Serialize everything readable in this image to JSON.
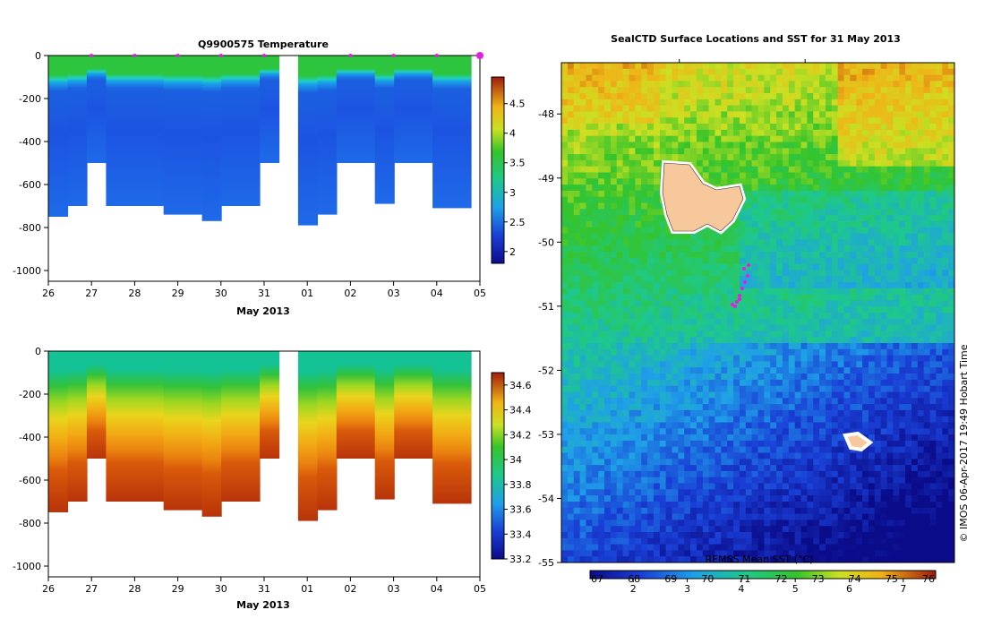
{
  "chart_data": [
    {
      "type": "heatmap",
      "title": "Q9900575  Temperature",
      "xlabel": "May 2013",
      "ylabel": "",
      "x_ticks": [
        "26",
        "27",
        "28",
        "29",
        "30",
        "31",
        "01",
        "02",
        "03",
        "04",
        "05"
      ],
      "y_ticks": [
        "0",
        "-200",
        "-400",
        "-600",
        "-800",
        "-1000"
      ],
      "ylim": [
        -1050,
        0
      ],
      "colorbar": {
        "ticks": [
          "2",
          "2.5",
          "3",
          "3.5",
          "4",
          "4.5"
        ],
        "range": [
          1.8,
          4.95
        ]
      },
      "profile_bottoms": [
        -750,
        -700,
        -500,
        -700,
        -700,
        -700,
        -740,
        -740,
        -770,
        -700,
        -700,
        -500,
        null,
        -790,
        -740,
        -500,
        -500,
        -690,
        -500,
        -500,
        -710,
        -710
      ],
      "values_surface": 3.3,
      "values_mid": 2.6,
      "values_deep": 2.2,
      "cast_markers": [
        "27",
        "28",
        "29",
        "30",
        "31",
        "02",
        "03",
        "04",
        "05"
      ]
    },
    {
      "type": "heatmap",
      "title": "",
      "xlabel": "May 2013",
      "ylabel": "",
      "x_ticks": [
        "26",
        "27",
        "28",
        "29",
        "30",
        "31",
        "01",
        "02",
        "03",
        "04",
        "05"
      ],
      "y_ticks": [
        "0",
        "-200",
        "-400",
        "-600",
        "-800",
        "-1000"
      ],
      "ylim": [
        -1050,
        0
      ],
      "colorbar": {
        "ticks": [
          "33.2",
          "33.4",
          "33.6",
          "33.8",
          "34",
          "34.2",
          "34.4",
          "34.6"
        ],
        "range": [
          33.2,
          34.7
        ]
      },
      "profile_bottoms": [
        -750,
        -700,
        -500,
        -700,
        -700,
        -700,
        -740,
        -740,
        -770,
        -700,
        -700,
        -500,
        null,
        -790,
        -740,
        -500,
        -500,
        -690,
        -500,
        -500,
        -710,
        -710
      ],
      "values_surface": 33.75,
      "values_mid": 34.2,
      "values_deep": 34.6
    },
    {
      "type": "heatmap",
      "title": "SealCTD Surface Locations and SST for 31 May 2013",
      "xlabel": "",
      "ylabel": "",
      "y_ticks": [
        "-48",
        "-49",
        "-50",
        "-51",
        "-52",
        "-53",
        "-54",
        "-55"
      ],
      "ylim": [
        -55,
        -47.2
      ],
      "colorbar": {
        "title": "REMSS Mean SST (°C)",
        "ticks_c": [
          "2",
          "3",
          "4",
          "5",
          "6",
          "7"
        ],
        "ticks_f": [
          "67",
          "68",
          "69",
          "70",
          "71",
          "72",
          "73",
          "74",
          "75",
          "76"
        ],
        "range": [
          1.2,
          7.6
        ]
      }
    }
  ],
  "watermark": "© IMOS 06-Apr-2017 19:49 Hobart Time"
}
